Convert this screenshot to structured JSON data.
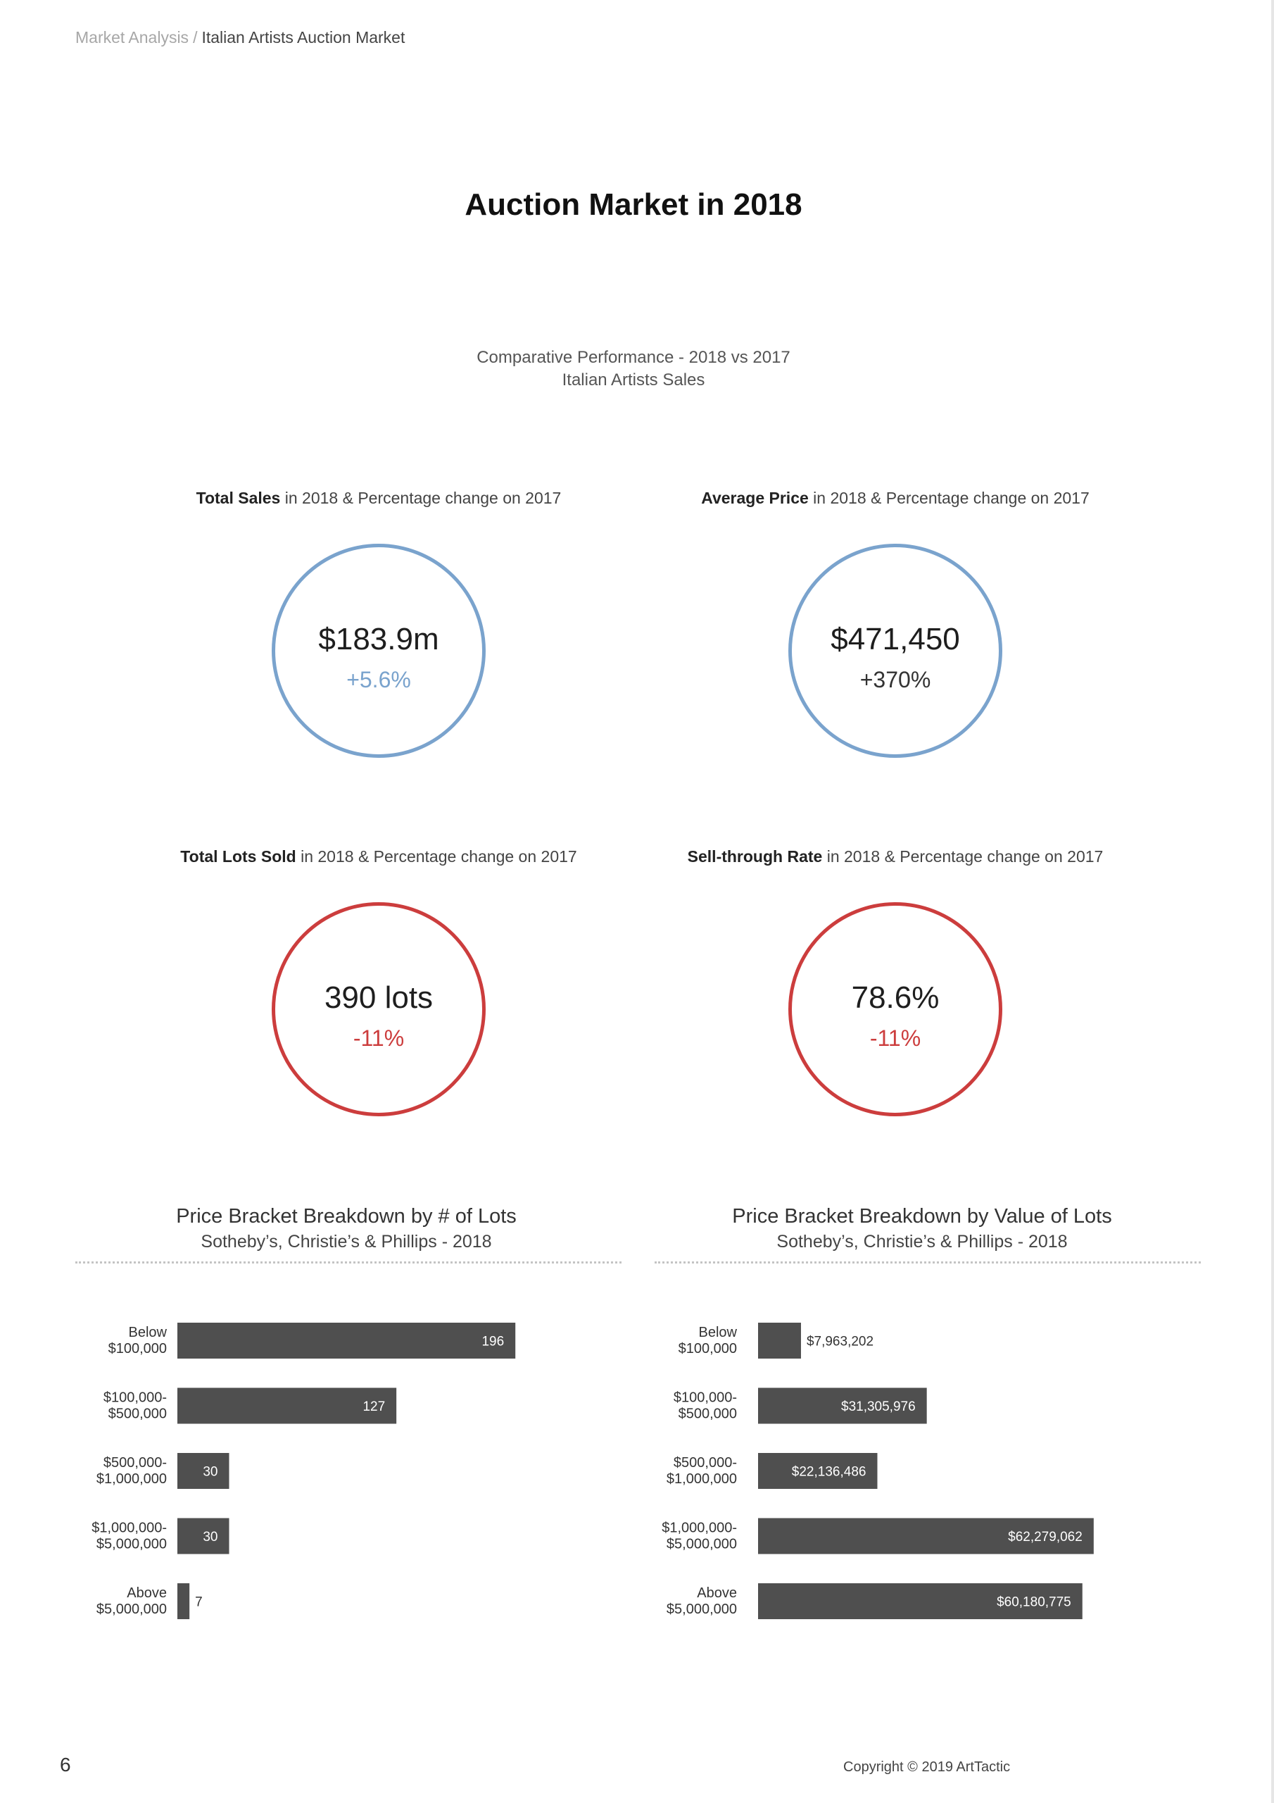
{
  "breadcrumb": {
    "section": "Market Analysis",
    "separator": "/",
    "current": "Italian Artists Auction Market"
  },
  "page_title": "Auction Market in 2018",
  "subtitle": {
    "line1": "Comparative Performance - 2018 vs 2017",
    "line2": "Italian Artists Sales"
  },
  "metrics": [
    {
      "label_bold": "Total Sales",
      "label_rest": " in 2018 & Percentage change on 2017",
      "value": "$183.9m",
      "change": "+5.6%",
      "ring_color": "#7aa3cd",
      "change_color": "#7aa3cd"
    },
    {
      "label_bold": "Average Price",
      "label_rest": " in 2018 & Percentage change on 2017",
      "value": "$471,450",
      "change": "+370%",
      "ring_color": "#7aa3cd",
      "change_color": "#333333"
    },
    {
      "label_bold": "Total Lots Sold",
      "label_rest": " in 2018 & Percentage change on 2017",
      "value": "390 lots",
      "change": "-11%",
      "ring_color": "#cc3d3d",
      "change_color": "#cc3d3d"
    },
    {
      "label_bold": "Sell-through Rate",
      "label_rest": " in 2018 & Percentage change on 2017",
      "value": "78.6%",
      "change": "-11%",
      "ring_color": "#cc3d3d",
      "change_color": "#cc3d3d"
    }
  ],
  "chart_data": [
    {
      "type": "bar",
      "orientation": "horizontal",
      "title": "Price Bracket Breakdown by # of Lots",
      "subtitle": "Sotheby’s, Christie’s & Phillips - 2018",
      "categories": [
        [
          "Below",
          "$100,000"
        ],
        [
          "$100,000-",
          "$500,000"
        ],
        [
          "$500,000-",
          "$1,000,000"
        ],
        [
          "$1,000,000-",
          "$5,000,000"
        ],
        [
          "Above",
          "$5,000,000"
        ]
      ],
      "values": [
        196,
        127,
        30,
        30,
        7
      ],
      "value_labels": [
        "196",
        "127",
        "30",
        "30",
        "7"
      ],
      "bar_color": "#4f4f4f",
      "xlim": [
        0,
        200
      ]
    },
    {
      "type": "bar",
      "orientation": "horizontal",
      "title": "Price Bracket Breakdown by Value of Lots",
      "subtitle": "Sotheby’s, Christie’s & Phillips - 2018",
      "categories": [
        [
          "Below",
          "$100,000"
        ],
        [
          "$100,000-",
          "$500,000"
        ],
        [
          "$500,000-",
          "$1,000,000"
        ],
        [
          "$1,000,000-",
          "$5,000,000"
        ],
        [
          "Above",
          "$5,000,000"
        ]
      ],
      "values": [
        7963202,
        31305976,
        22136486,
        62279062,
        60180775
      ],
      "value_labels": [
        "$7,963,202",
        "$31,305,976",
        "$22,136,486",
        "$62,279,062",
        "$60,180,775"
      ],
      "bar_color": "#4f4f4f",
      "xlim": [
        0,
        64000000
      ]
    }
  ],
  "footer": {
    "page_number": "6",
    "copyright": "Copyright © 2019 ArtTactic"
  }
}
